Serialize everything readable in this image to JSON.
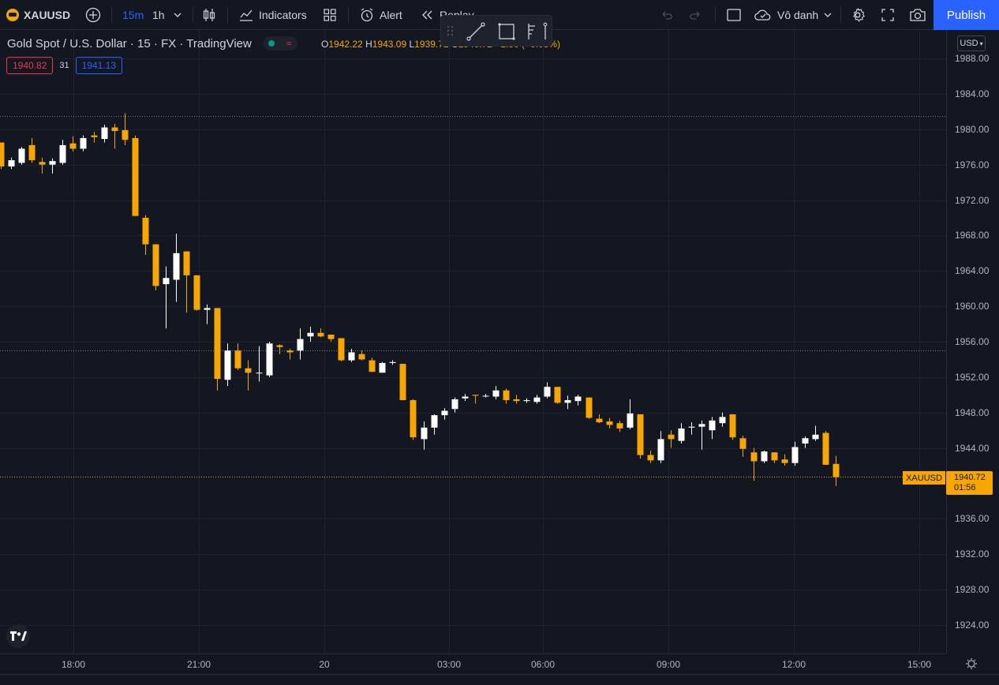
{
  "toolbar": {
    "symbol": "XAUUSD",
    "interval_active": "15m",
    "interval_other": "1h",
    "indicators": "Indicators",
    "alert": "Alert",
    "replay": "Replay",
    "layout_name": "Vô danh",
    "publish": "Publish"
  },
  "legend": {
    "title": "Gold Spot / U.S. Dollar · 15 · FX · TradingView",
    "open_label": "O",
    "open": "1942.22",
    "high_label": "H",
    "high": "1943.09",
    "low_label": "L",
    "low": "1939.72",
    "close_label": "C",
    "close": "1940.72",
    "change": "−1.50 (−0.08%)"
  },
  "quote": {
    "bid": "1940.82",
    "spread": "31",
    "ask": "1941.13"
  },
  "price_axis": {
    "currency": "USD",
    "ticks": [
      "1988.00",
      "1984.00",
      "1980.00",
      "1976.00",
      "1972.00",
      "1968.00",
      "1964.00",
      "1960.00",
      "1956.00",
      "1952.00",
      "1948.00",
      "1944.00",
      "1936.00",
      "1932.00",
      "1928.00",
      "1924.00"
    ],
    "current_symbol": "XAUUSD",
    "current_price": "1940.72",
    "countdown": "01:56"
  },
  "time_axis": {
    "ticks": [
      "18:00",
      "21:00",
      "20",
      "03:00",
      "06:00",
      "09:00",
      "12:00",
      "15:00"
    ]
  },
  "colors": {
    "up": "#ffffff",
    "down": "#f7a600",
    "background": "#131722",
    "accent": "#2962ff",
    "bid": "#f23645",
    "ask": "#2962ff"
  },
  "chart_data": {
    "type": "candlestick",
    "interval": "15m",
    "ylim": [
      1921,
      1991
    ],
    "reference_lines": [
      1981.5,
      1955.0,
      1940.72
    ],
    "candles": [
      [
        1978.5,
        1978.5,
        1975.5,
        1975.8
      ],
      [
        1975.8,
        1976.8,
        1975.5,
        1976.5
      ],
      [
        1976.2,
        1978.0,
        1976.0,
        1977.8
      ],
      [
        1978.2,
        1979.0,
        1976.2,
        1976.5
      ],
      [
        1976.3,
        1976.8,
        1975.0,
        1976.0
      ],
      [
        1976.0,
        1976.7,
        1975.0,
        1976.4
      ],
      [
        1976.2,
        1978.8,
        1976.0,
        1978.2
      ],
      [
        1978.4,
        1979.2,
        1977.5,
        1977.8
      ],
      [
        1977.8,
        1979.3,
        1977.5,
        1979.0
      ],
      [
        1979.3,
        1979.7,
        1978.5,
        1979.1
      ],
      [
        1978.9,
        1980.5,
        1978.5,
        1980.2
      ],
      [
        1980.2,
        1980.6,
        1977.8,
        1979.8
      ],
      [
        1979.9,
        1981.8,
        1978.2,
        1978.8
      ],
      [
        1979.0,
        1979.3,
        1970.2,
        1970.2
      ],
      [
        1970.0,
        1970.3,
        1965.8,
        1967.0
      ],
      [
        1967.0,
        1967.0,
        1961.8,
        1962.3
      ],
      [
        1962.5,
        1964.5,
        1957.5,
        1963.2
      ],
      [
        1963.0,
        1968.2,
        1960.5,
        1966.0
      ],
      [
        1966.2,
        1966.2,
        1959.3,
        1963.5
      ],
      [
        1963.5,
        1963.5,
        1959.5,
        1959.6
      ],
      [
        1959.6,
        1960.2,
        1958.0,
        1959.8
      ],
      [
        1959.8,
        1959.8,
        1950.5,
        1951.8
      ],
      [
        1951.7,
        1955.8,
        1951.0,
        1955.0
      ],
      [
        1955.0,
        1955.8,
        1952.8,
        1953.0
      ],
      [
        1953.0,
        1953.9,
        1950.5,
        1952.5
      ],
      [
        1952.5,
        1955.5,
        1951.5,
        1952.5
      ],
      [
        1952.2,
        1956.0,
        1952.0,
        1955.8
      ],
      [
        1955.6,
        1955.7,
        1954.6,
        1955.4
      ],
      [
        1955.0,
        1955.2,
        1954.0,
        1954.8
      ],
      [
        1955.0,
        1957.5,
        1954.0,
        1956.3
      ],
      [
        1956.6,
        1957.7,
        1956.0,
        1957.0
      ],
      [
        1957.0,
        1957.5,
        1956.5,
        1956.6
      ],
      [
        1956.8,
        1956.8,
        1956.0,
        1956.3
      ],
      [
        1956.4,
        1956.4,
        1953.8,
        1953.9
      ],
      [
        1953.9,
        1955.2,
        1953.7,
        1954.8
      ],
      [
        1954.6,
        1955.0,
        1953.9,
        1954.0
      ],
      [
        1953.9,
        1954.2,
        1952.6,
        1952.6
      ],
      [
        1952.5,
        1953.7,
        1952.5,
        1953.6
      ],
      [
        1953.6,
        1953.9,
        1953.4,
        1953.7
      ],
      [
        1953.5,
        1953.5,
        1949.4,
        1949.4
      ],
      [
        1949.4,
        1949.5,
        1944.9,
        1945.2
      ],
      [
        1945.0,
        1947.0,
        1943.8,
        1946.3
      ],
      [
        1946.3,
        1947.8,
        1945.5,
        1947.7
      ],
      [
        1947.7,
        1948.5,
        1947.2,
        1948.2
      ],
      [
        1948.4,
        1949.7,
        1948.0,
        1949.5
      ],
      [
        1949.6,
        1950.1,
        1949.3,
        1949.8
      ],
      [
        1950.0,
        1950.0,
        1949.0,
        1949.9
      ],
      [
        1949.9,
        1950.1,
        1949.7,
        1949.9
      ],
      [
        1949.8,
        1951.0,
        1949.5,
        1950.5
      ],
      [
        1950.5,
        1950.7,
        1949.0,
        1949.4
      ],
      [
        1949.5,
        1950.0,
        1949.0,
        1949.3
      ],
      [
        1949.3,
        1949.6,
        1949.1,
        1949.4
      ],
      [
        1949.2,
        1950.0,
        1949.0,
        1949.7
      ],
      [
        1949.8,
        1951.4,
        1949.6,
        1950.9
      ],
      [
        1950.9,
        1950.9,
        1949.0,
        1949.1
      ],
      [
        1949.1,
        1949.9,
        1948.4,
        1949.4
      ],
      [
        1949.3,
        1950.0,
        1948.8,
        1949.8
      ],
      [
        1949.7,
        1949.7,
        1947.3,
        1947.4
      ],
      [
        1947.3,
        1947.8,
        1946.8,
        1946.9
      ],
      [
        1947.0,
        1947.4,
        1946.2,
        1946.6
      ],
      [
        1946.8,
        1947.1,
        1945.8,
        1946.2
      ],
      [
        1946.3,
        1949.5,
        1946.1,
        1947.9
      ],
      [
        1947.8,
        1947.8,
        1942.8,
        1943.2
      ],
      [
        1943.2,
        1943.7,
        1942.3,
        1942.6
      ],
      [
        1942.6,
        1945.9,
        1942.3,
        1945.0
      ],
      [
        1945.5,
        1946.0,
        1944.0,
        1945.0
      ],
      [
        1944.8,
        1946.8,
        1944.5,
        1946.2
      ],
      [
        1946.3,
        1946.9,
        1945.5,
        1946.4
      ],
      [
        1946.4,
        1947.1,
        1943.8,
        1946.7
      ],
      [
        1946.0,
        1947.5,
        1945.0,
        1947.1
      ],
      [
        1946.8,
        1948.0,
        1946.4,
        1947.5
      ],
      [
        1947.8,
        1947.8,
        1944.9,
        1945.2
      ],
      [
        1945.1,
        1945.4,
        1943.0,
        1943.9
      ],
      [
        1943.5,
        1944.0,
        1940.3,
        1942.5
      ],
      [
        1942.5,
        1943.7,
        1942.3,
        1943.6
      ],
      [
        1943.5,
        1943.5,
        1942.3,
        1942.6
      ],
      [
        1942.7,
        1943.3,
        1942.0,
        1942.3
      ],
      [
        1942.3,
        1944.7,
        1942.0,
        1944.1
      ],
      [
        1944.5,
        1945.3,
        1944.0,
        1945.1
      ],
      [
        1945.0,
        1946.5,
        1944.8,
        1945.5
      ],
      [
        1945.7,
        1945.9,
        1942.1,
        1942.1
      ],
      [
        1942.2,
        1943.1,
        1939.7,
        1940.7
      ]
    ]
  }
}
